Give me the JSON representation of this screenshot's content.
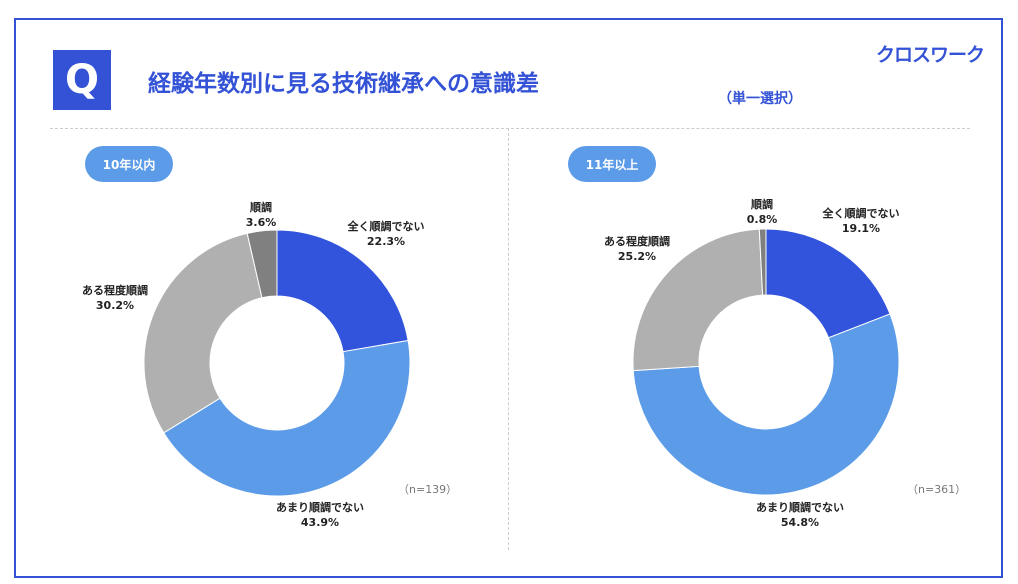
{
  "header": {
    "q_label": "Q",
    "title": "経験年数別に見る技術継承への意識差",
    "logo": "クロスワーク",
    "selection_type": "（単一選択）"
  },
  "colors": {
    "accent": "#3452d6",
    "全く順調でない": "#3253dc",
    "あまり順調でない": "#5b9be8",
    "ある程度順調": "#b0b0b0",
    "順調": "#808080"
  },
  "chart_data": [
    {
      "type": "pie",
      "donut": true,
      "title": "10年以内",
      "n_label": "（n=139）",
      "slices": [
        {
          "label": "全く順調でない",
          "value": 22.3,
          "text": "22.3%"
        },
        {
          "label": "あまり順調でない",
          "value": 43.9,
          "text": "43.9%"
        },
        {
          "label": "ある程度順調",
          "value": 30.2,
          "text": "30.2%"
        },
        {
          "label": "順調",
          "value": 3.6,
          "text": "3.6%"
        }
      ]
    },
    {
      "type": "pie",
      "donut": true,
      "title": "11年以上",
      "n_label": "（n=361）",
      "slices": [
        {
          "label": "全く順調でない",
          "value": 19.1,
          "text": "19.1%"
        },
        {
          "label": "あまり順調でない",
          "value": 54.8,
          "text": "54.8%"
        },
        {
          "label": "ある程度順調",
          "value": 25.2,
          "text": "25.2%"
        },
        {
          "label": "順調",
          "value": 0.8,
          "text": "0.8%"
        }
      ]
    }
  ]
}
